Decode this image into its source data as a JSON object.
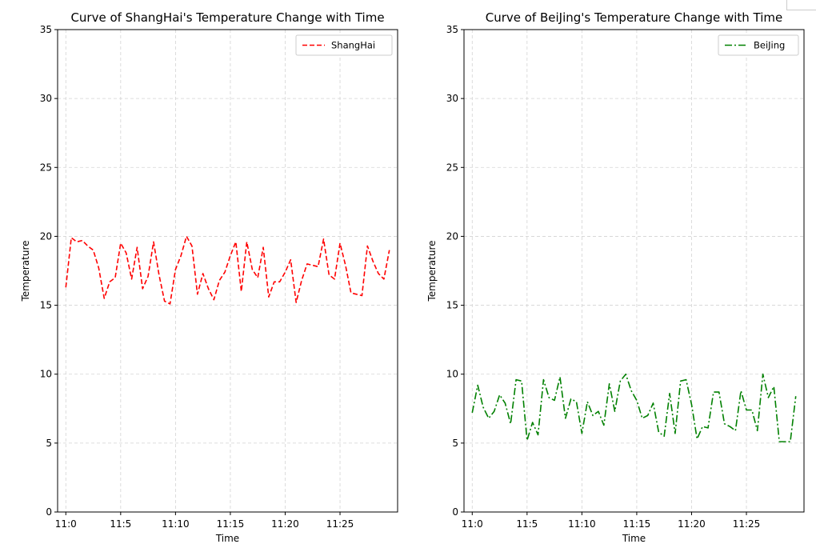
{
  "chart_data": [
    {
      "type": "line",
      "title": "Curve of ShangHai's Temperature Change with Time",
      "xlabel": "Time",
      "ylabel": "Temperature",
      "ylim": [
        0,
        35
      ],
      "yticks": [
        0,
        5,
        10,
        15,
        20,
        25,
        30,
        35
      ],
      "xlim": [
        -1.5,
        60.5
      ],
      "xticks": [
        0,
        10,
        20,
        30,
        40,
        50
      ],
      "xtick_labels": [
        "11:0",
        "11:5",
        "11:10",
        "11:15",
        "11:20",
        "11:25"
      ],
      "grid": true,
      "legend_position": "top-right",
      "series": [
        {
          "name": "ShangHai",
          "color": "#ff0000",
          "linestyle": "dashed",
          "x": [
            0,
            1,
            2,
            3,
            4,
            5,
            6,
            7,
            8,
            9,
            10,
            11,
            12,
            13,
            14,
            15,
            16,
            17,
            18,
            19,
            20,
            21,
            22,
            23,
            24,
            25,
            26,
            27,
            28,
            29,
            30,
            31,
            32,
            33,
            34,
            35,
            36,
            37,
            38,
            39,
            40,
            41,
            42,
            43,
            44,
            45,
            46,
            47,
            48,
            49,
            50,
            51,
            52,
            53,
            54,
            55,
            56,
            57,
            58,
            59
          ],
          "values": [
            16.3,
            19.9,
            19.6,
            19.7,
            19.3,
            19.0,
            17.7,
            15.5,
            16.7,
            17.0,
            19.5,
            18.8,
            16.9,
            19.2,
            16.2,
            17.1,
            19.6,
            17.2,
            15.3,
            15.1,
            17.6,
            18.6,
            20.0,
            19.3,
            15.8,
            17.3,
            16.2,
            15.4,
            16.8,
            17.4,
            18.6,
            19.6,
            16.0,
            19.6,
            17.6,
            17.0,
            19.2,
            15.6,
            16.7,
            16.7,
            17.4,
            18.3,
            15.2,
            16.8,
            18.0,
            17.9,
            17.8,
            19.8,
            17.2,
            16.9,
            19.5,
            17.9,
            15.9,
            15.8,
            15.7,
            19.3,
            18.2,
            17.3,
            16.9,
            19.0
          ]
        }
      ]
    },
    {
      "type": "line",
      "title": "Curve of BeiJing's Temperature Change with Time",
      "xlabel": "Time",
      "ylabel": "Temperature",
      "ylim": [
        0,
        35
      ],
      "yticks": [
        0,
        5,
        10,
        15,
        20,
        25,
        30,
        35
      ],
      "xlim": [
        -1.5,
        60.5
      ],
      "xticks": [
        0,
        10,
        20,
        30,
        40,
        50
      ],
      "xtick_labels": [
        "11:0",
        "11:5",
        "11:10",
        "11:15",
        "11:20",
        "11:25"
      ],
      "grid": true,
      "legend_position": "top-right",
      "series": [
        {
          "name": "BeiJing",
          "color": "#008000",
          "linestyle": "dashdot",
          "x": [
            0,
            1,
            2,
            3,
            4,
            5,
            6,
            7,
            8,
            9,
            10,
            11,
            12,
            13,
            14,
            15,
            16,
            17,
            18,
            19,
            20,
            21,
            22,
            23,
            24,
            25,
            26,
            27,
            28,
            29,
            30,
            31,
            32,
            33,
            34,
            35,
            36,
            37,
            38,
            39,
            40,
            41,
            42,
            43,
            44,
            45,
            46,
            47,
            48,
            49,
            50,
            51,
            52,
            53,
            54,
            55,
            56,
            57,
            58,
            59
          ],
          "values": [
            7.2,
            9.2,
            7.6,
            6.8,
            7.3,
            8.5,
            7.9,
            6.4,
            9.6,
            9.5,
            5.2,
            6.5,
            5.6,
            9.6,
            8.3,
            8.1,
            9.8,
            6.8,
            8.2,
            8.0,
            5.7,
            8.0,
            7.0,
            7.3,
            6.3,
            9.3,
            7.3,
            9.5,
            10.0,
            8.8,
            8.1,
            6.8,
            7.0,
            7.9,
            5.8,
            5.5,
            8.6,
            5.7,
            9.5,
            9.6,
            7.8,
            5.3,
            6.2,
            6.1,
            8.7,
            8.7,
            6.4,
            6.2,
            5.9,
            8.8,
            7.4,
            7.4,
            5.9,
            10.0,
            8.3,
            9.1,
            5.1,
            5.1,
            5.1,
            8.4
          ]
        }
      ]
    }
  ]
}
